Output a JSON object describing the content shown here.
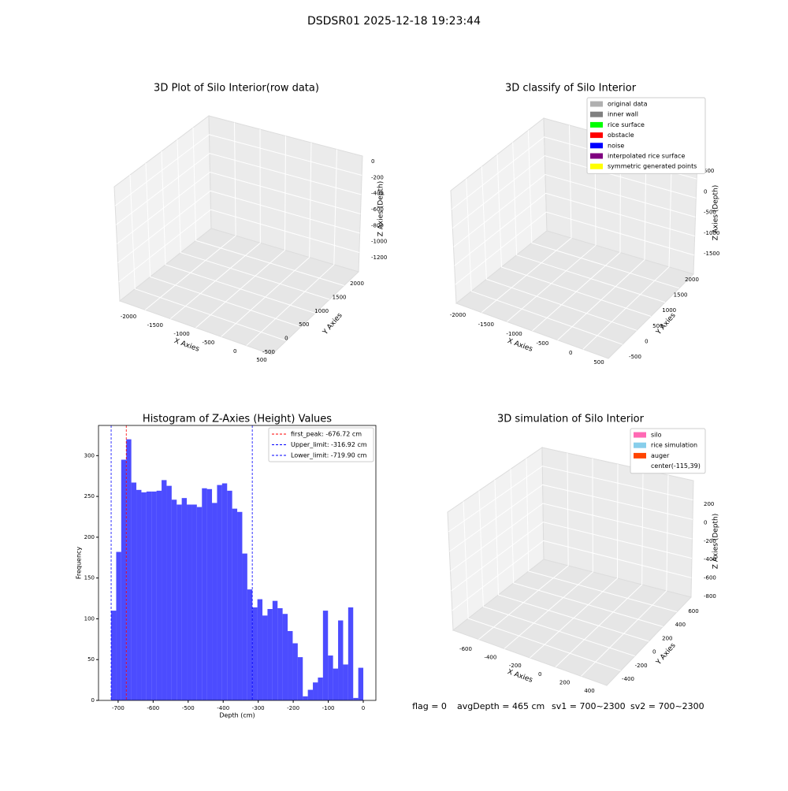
{
  "suptitle": "DSDSR01 2025-12-18 19:23:44",
  "chart_data": [
    {
      "type": "scatter3d",
      "title": "3D Plot of Silo Interior(row data)",
      "xlabel": "X Axies",
      "ylabel": "Y Axies",
      "zlabel": "Z Axies (Depth)",
      "xticks": [
        -2000,
        -1500,
        -1000,
        -500,
        0,
        500
      ],
      "yticks": [
        -500,
        0,
        500,
        1000,
        1500,
        2000
      ],
      "zticks": [
        0,
        -200,
        -400,
        -600,
        -800,
        -1000,
        -1200
      ]
    },
    {
      "type": "scatter3d",
      "title": "3D classify of Silo Interior",
      "xlabel": "X Axies",
      "ylabel": "Y Axies",
      "zlabel": "Z Axies (Depth)",
      "xticks": [
        -2000,
        -1500,
        -1000,
        -500,
        0,
        500
      ],
      "yticks": [
        -500,
        0,
        500,
        1000,
        1500,
        2000
      ],
      "zticks": [
        500,
        0,
        -500,
        -1000,
        -1500
      ],
      "legend": [
        {
          "name": "original data",
          "color": "#b0b0b0"
        },
        {
          "name": "inner wall",
          "color": "#808080"
        },
        {
          "name": "rice surface",
          "color": "#00ff00"
        },
        {
          "name": "obstacle",
          "color": "#ff0000"
        },
        {
          "name": "noise",
          "color": "#0000ff"
        },
        {
          "name": "interpolated rice surface",
          "color": "#800080"
        },
        {
          "name": "symmetric generated points",
          "color": "#ffff00"
        }
      ]
    },
    {
      "type": "histogram",
      "title": "Histogram of Z-Axies (Height) Values",
      "xlabel": "Depth (cm)",
      "ylabel": "Frequency",
      "color": "#0000ff",
      "bins": [
        -719.9,
        -705.5,
        -691.1,
        -676.7,
        -662.3,
        -647.9,
        -633.5,
        -619.1,
        -604.7,
        -590.3,
        -575.9,
        -561.5,
        -547.1,
        -532.7,
        -518.3,
        -503.9,
        -489.5,
        -475.1,
        -460.7,
        -446.3,
        -431.9,
        -417.5,
        -403.1,
        -388.7,
        -374.3,
        -359.9,
        -345.5,
        -331.1,
        -316.7,
        -302.3,
        -287.9,
        -273.5,
        -259.1,
        -244.7,
        -230.3,
        -215.9,
        -201.5,
        -187.1,
        -172.7,
        -158.3,
        -143.9,
        -129.5,
        -115.1,
        -100.7,
        -86.3,
        -71.9,
        -57.5,
        -43.1,
        -28.7,
        -14.3,
        0.1
      ],
      "values": [
        110,
        182,
        295,
        320,
        267,
        258,
        255,
        256,
        256,
        257,
        270,
        263,
        246,
        240,
        248,
        240,
        240,
        237,
        260,
        259,
        242,
        264,
        266,
        257,
        235,
        231,
        180,
        136,
        114,
        124,
        104,
        112,
        122,
        113,
        106,
        85,
        70,
        53,
        5,
        13,
        22,
        28,
        110,
        55,
        39,
        98,
        44,
        114,
        3,
        40
      ],
      "xlim": [
        -756,
        36
      ],
      "ylim": [
        0,
        337
      ],
      "xticks": [
        -700,
        -600,
        -500,
        -400,
        -300,
        -200,
        -100,
        0
      ],
      "yticks": [
        0,
        50,
        100,
        150,
        200,
        250,
        300
      ],
      "lines": [
        {
          "label": "first_peak: -676.72 cm",
          "value": -676.72,
          "color": "#ff0000"
        },
        {
          "label": "Upper_limit: -316.92 cm",
          "value": -316.92,
          "color": "#0000ff"
        },
        {
          "label": "Lower_limit: -719.90 cm",
          "value": -719.9,
          "color": "#0000ff"
        }
      ]
    },
    {
      "type": "surface3d",
      "title": "3D simulation of Silo Interior",
      "xlabel": "X Axies",
      "ylabel": "Y Axies",
      "zlabel": "Z Axies (Depth)",
      "xticks": [
        -600,
        -400,
        -200,
        0,
        200,
        400
      ],
      "yticks": [
        -400,
        -200,
        0,
        200,
        400,
        600
      ],
      "zticks": [
        200,
        0,
        -200,
        -400,
        -600,
        -800
      ],
      "legend": [
        {
          "name": "silo",
          "color": "#ff69b4"
        },
        {
          "name": "rice simulation",
          "color": "#87ceeb"
        },
        {
          "name": "auger",
          "color": "#ff4500"
        },
        {
          "name": "center(-115,39)",
          "color": null
        }
      ]
    }
  ],
  "footer": [
    "flag = 0",
    "avgDepth = 465 cm",
    "sv1 = 700~2300",
    "sv2 = 700~2300"
  ]
}
